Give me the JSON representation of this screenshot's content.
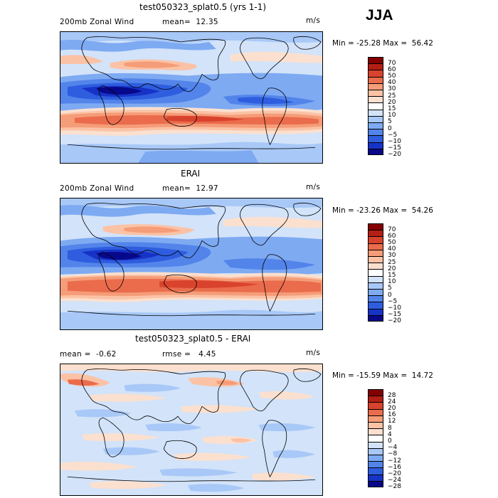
{
  "season": "JJA",
  "palettes": {
    "full": [
      "#08088a",
      "#1733c7",
      "#2e5ddf",
      "#5284ea",
      "#7eaaf2",
      "#a8c8f7",
      "#d2e3fa",
      "#fbe0cf",
      "#fbc2a5",
      "#f59c78",
      "#ea6c4c",
      "#d9432d",
      "#b41e14",
      "#840000"
    ],
    "diff": [
      "#08088a",
      "#1733c7",
      "#2e5ddf",
      "#5284ea",
      "#7eaaf2",
      "#a8c8f7",
      "#d2e3fa",
      "#fbe0cf",
      "#fbc2a5",
      "#f59c78",
      "#ea6c4c",
      "#d9432d",
      "#b41e14",
      "#840000"
    ]
  },
  "panels": [
    {
      "id": "model",
      "title": "test050323_splat0.5 (yrs 1-1)",
      "left_label": "200mb Zonal Wind",
      "mid_label": "mean=  12.35",
      "units": "m/s",
      "minmax": "Min = -25.28 Max =  56.42",
      "levels": [
        "70",
        "60",
        "50",
        "40",
        "30",
        "25",
        "20",
        "15",
        "10",
        "5",
        "0",
        "−5",
        "−10",
        "−15",
        "−20"
      ]
    },
    {
      "id": "obs",
      "title": "ERAI",
      "left_label": "200mb Zonal Wind",
      "mid_label": "mean=  12.97",
      "units": "m/s",
      "minmax": "Min = -23.26 Max =  54.26",
      "levels": [
        "70",
        "60",
        "50",
        "40",
        "30",
        "25",
        "20",
        "15",
        "10",
        "5",
        "0",
        "−5",
        "−10",
        "−15",
        "−20"
      ]
    },
    {
      "id": "diff",
      "title": "test050323_splat0.5 - ERAI",
      "left_label": "mean =  -0.62",
      "mid_label": "rmse =   4.45",
      "units": "m/s",
      "minmax": "Min = -15.59 Max =  14.72",
      "levels": [
        "28",
        "24",
        "20",
        "16",
        "12",
        "8",
        "4",
        "0",
        "−4",
        "−8",
        "−12",
        "−16",
        "−20",
        "−24",
        "−28"
      ]
    }
  ]
}
